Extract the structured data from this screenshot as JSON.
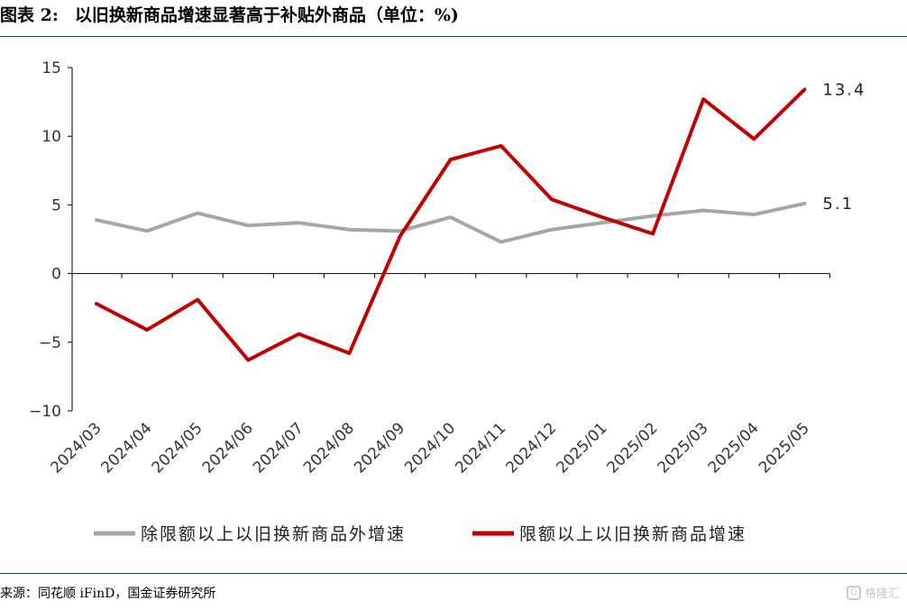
{
  "header": {
    "figure_label": "图表 2:",
    "title": "以旧换新商品增速显著高于补贴外商品（单位：%)"
  },
  "footer": {
    "source": "来源：同花顺 iFinD，国金证券研究所",
    "watermark": "格隆汇"
  },
  "chart_data": {
    "type": "line",
    "categories": [
      "2024/03",
      "2024/04",
      "2024/05",
      "2024/06",
      "2024/07",
      "2024/08",
      "2024/09",
      "2024/10",
      "2024/11",
      "2024/12",
      "2025/01",
      "2025/02",
      "2025/03",
      "2025/04",
      "2025/05"
    ],
    "ylim": [
      -10,
      15
    ],
    "yticks": [
      -10,
      -5,
      0,
      5,
      10,
      15
    ],
    "ytick_labels": [
      "−10",
      "−5",
      "0",
      "5",
      "10",
      "15"
    ],
    "series": [
      {
        "name": "除限额以上以旧换新商品外增速",
        "color": "#a6a6a6",
        "values": [
          3.9,
          3.1,
          4.4,
          3.5,
          3.7,
          3.2,
          3.1,
          4.1,
          2.3,
          3.2,
          3.7,
          4.2,
          4.6,
          4.3,
          5.1
        ],
        "end_label": "5.1"
      },
      {
        "name": "限额以上以旧换新商品增速",
        "color": "#c00000",
        "values": [
          -2.2,
          -4.1,
          -1.9,
          -6.3,
          -4.4,
          -5.8,
          2.7,
          8.3,
          9.3,
          5.4,
          4.1,
          2.9,
          12.7,
          9.8,
          13.4
        ],
        "end_label": "13.4"
      }
    ],
    "grid": false,
    "legend_position": "bottom"
  }
}
